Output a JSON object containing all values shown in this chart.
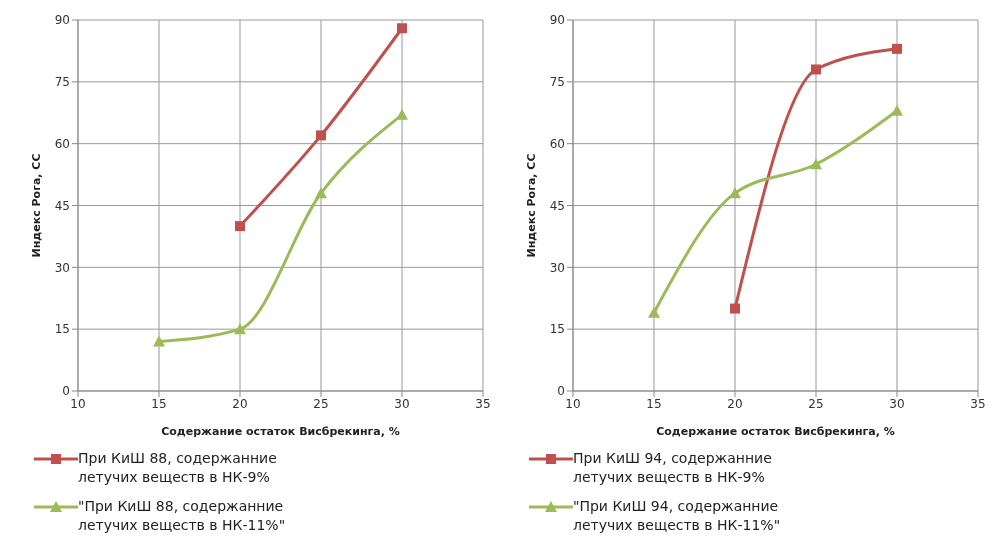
{
  "chart_data": [
    {
      "type": "line",
      "xlabel": "Содержание остаток Висбрекинга,  %",
      "ylabel": "Индекс Рога, СС",
      "xlim": [
        10,
        35
      ],
      "xticks": [
        10,
        15,
        20,
        25,
        30,
        35
      ],
      "ylim": [
        0,
        90
      ],
      "yticks": [
        0,
        15,
        30,
        45,
        60,
        75,
        90
      ],
      "grid": true,
      "legend": "bottom",
      "series": [
        {
          "name": "При КиШ 88, содержанние летучих веществ в НК-9%",
          "color": "#c0504d",
          "marker": "square",
          "x": [
            20,
            25,
            30
          ],
          "values": [
            40,
            62,
            88
          ]
        },
        {
          "name": "\"При КиШ 88, содержанние летучих веществ в НК-11%\"",
          "color": "#9bbb59",
          "marker": "triangle",
          "x": [
            15,
            20,
            25,
            30
          ],
          "values": [
            12,
            15,
            48,
            67
          ]
        }
      ]
    },
    {
      "type": "line",
      "xlabel": "Содержание остаток Висбрекинга,  %",
      "ylabel": "Индекс Рога, СС",
      "xlim": [
        10,
        35
      ],
      "xticks": [
        10,
        15,
        20,
        25,
        30,
        35
      ],
      "ylim": [
        0,
        90
      ],
      "yticks": [
        0,
        15,
        30,
        45,
        60,
        75,
        90
      ],
      "grid": true,
      "legend": "bottom",
      "series": [
        {
          "name": "При КиШ 94, содержанние летучих веществ в НК-9%",
          "color": "#c0504d",
          "marker": "square",
          "x": [
            20,
            25,
            30
          ],
          "values": [
            20,
            78,
            83
          ]
        },
        {
          "name": "\"При КиШ 94, содержанние летучих веществ в НК-11%\"",
          "color": "#9bbb59",
          "marker": "triangle",
          "x": [
            15,
            20,
            25,
            30
          ],
          "values": [
            19,
            48,
            55,
            68
          ]
        }
      ]
    }
  ]
}
